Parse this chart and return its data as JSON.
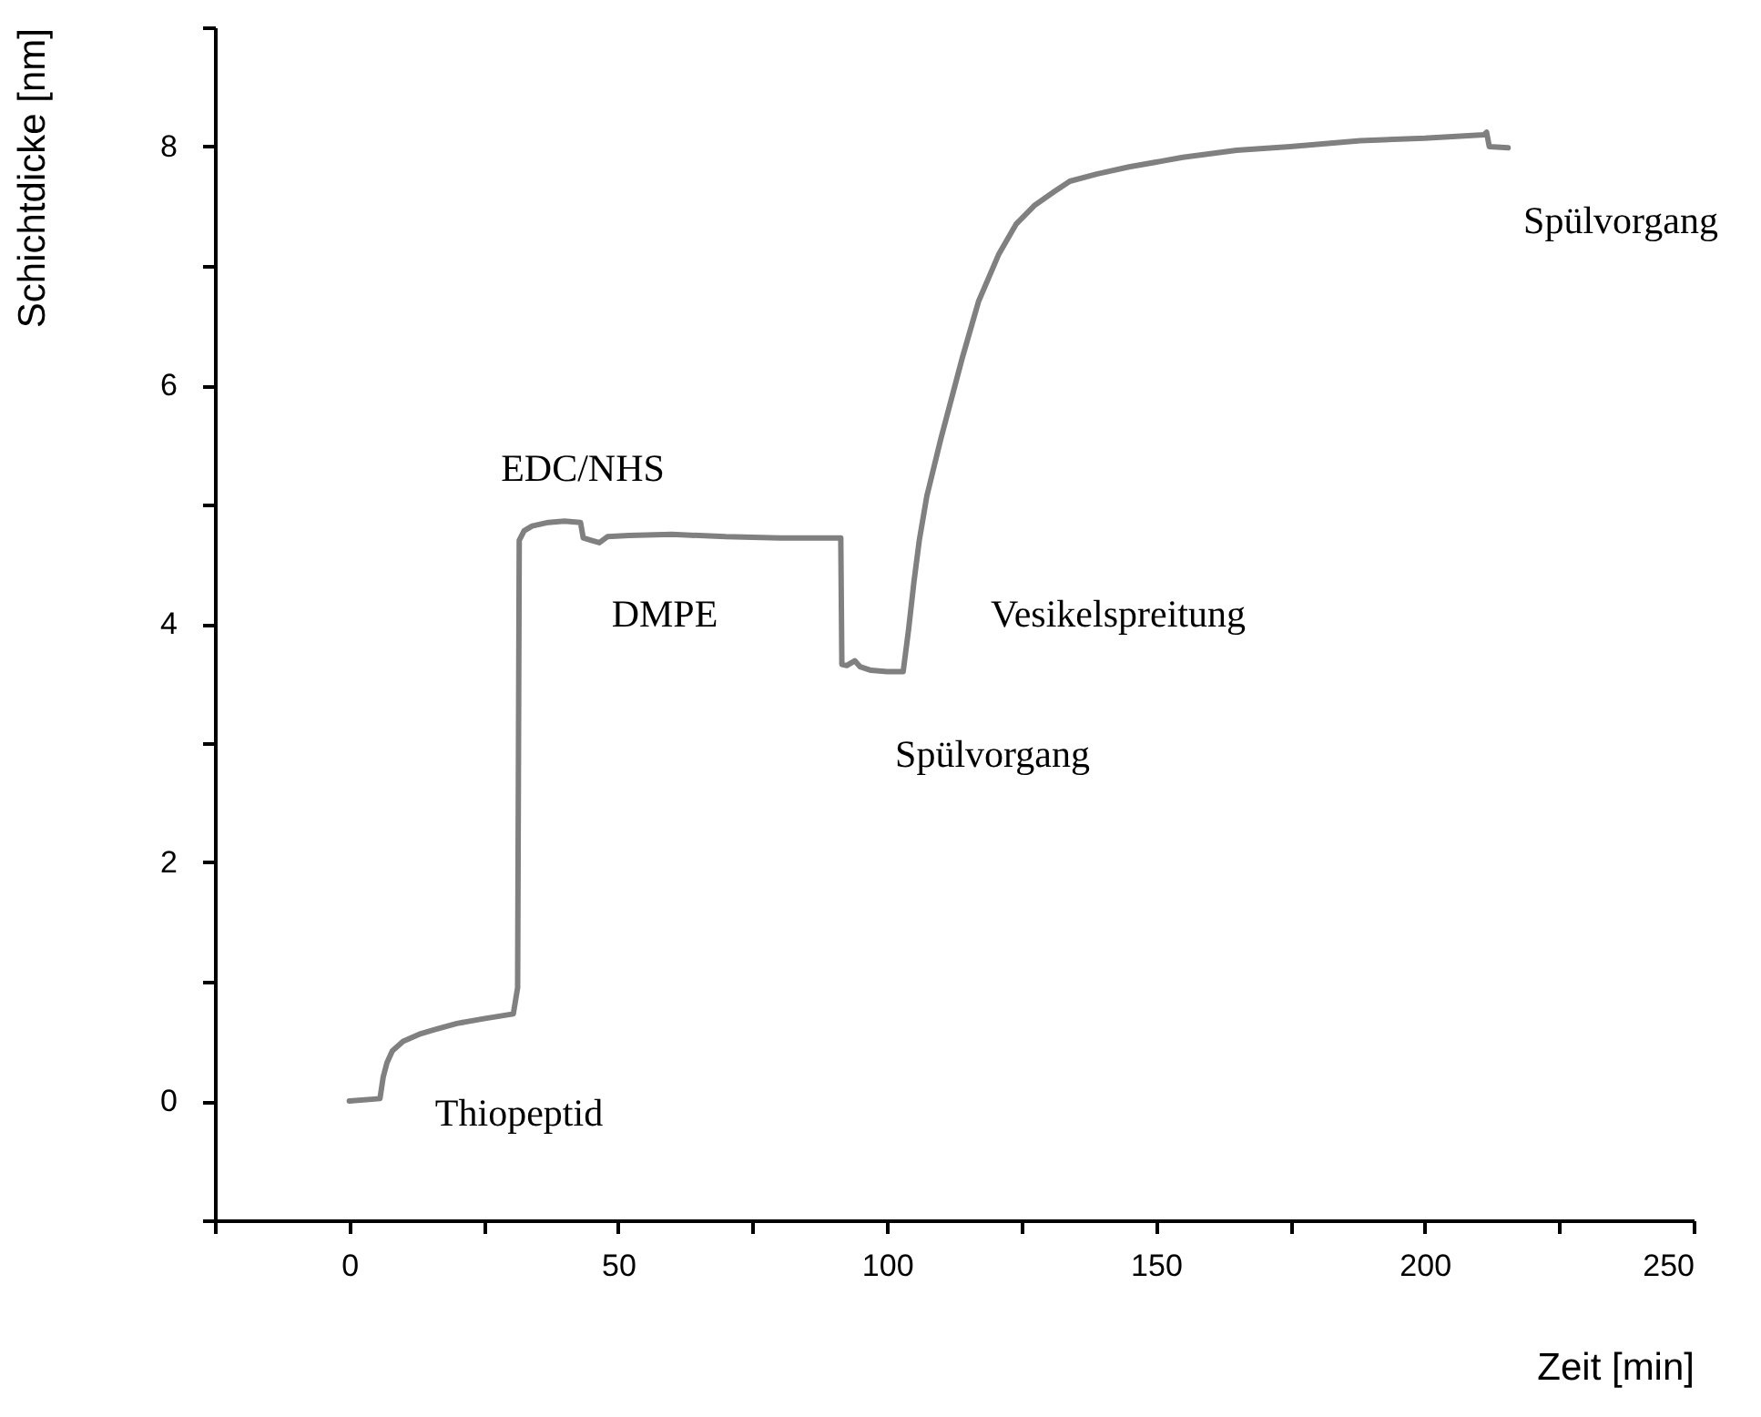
{
  "chart_data": {
    "type": "line",
    "xlabel": "Zeit [min]",
    "ylabel": "Schichtdicke [nm]",
    "xlim": [
      -25,
      250
    ],
    "ylim": [
      -1,
      9
    ],
    "xticks": [
      {
        "value": -25,
        "label": null
      },
      0,
      {
        "value": 25,
        "label": null
      },
      50,
      {
        "value": 75,
        "label": null
      },
      100,
      {
        "value": 125,
        "label": null
      },
      150,
      {
        "value": 175,
        "label": null
      },
      200,
      {
        "value": 225,
        "label": null
      },
      250
    ],
    "yticks": [
      {
        "value": -1,
        "label": null
      },
      0,
      {
        "value": 1,
        "label": null
      },
      2,
      {
        "value": 3,
        "label": null
      },
      4,
      {
        "value": 5,
        "label": null
      },
      6,
      {
        "value": 7,
        "label": null
      },
      8,
      {
        "value": 9,
        "label": null
      }
    ],
    "series": [
      {
        "color": "#808080",
        "x": [
          0,
          5.7,
          6.3,
          7,
          8,
          10,
          13,
          16,
          20,
          25,
          30.5,
          31.3,
          31.6,
          32.5,
          34,
          37,
          40,
          43,
          43.5,
          45,
          46.5,
          48,
          52,
          60,
          70,
          80,
          88,
          91.4,
          91.6,
          92.5,
          94,
          95,
          97,
          100,
          103,
          104,
          105,
          106,
          107.4,
          110,
          114,
          117,
          120.8,
          124,
          127.5,
          131,
          134,
          139,
          145,
          155,
          165,
          175,
          188,
          200,
          211,
          211.5,
          212,
          215.5
        ],
        "values": [
          0,
          0.02,
          0.2,
          0.32,
          0.42,
          0.5,
          0.56,
          0.6,
          0.65,
          0.69,
          0.73,
          0.95,
          4.7,
          4.78,
          4.82,
          4.85,
          4.86,
          4.85,
          4.72,
          4.7,
          4.68,
          4.73,
          4.74,
          4.75,
          4.73,
          4.72,
          4.72,
          4.72,
          3.66,
          3.65,
          3.69,
          3.64,
          3.61,
          3.6,
          3.6,
          3.95,
          4.35,
          4.7,
          5.07,
          5.55,
          6.23,
          6.7,
          7.1,
          7.35,
          7.51,
          7.62,
          7.71,
          7.77,
          7.83,
          7.91,
          7.97,
          8.0,
          8.05,
          8.07,
          8.1,
          8.12,
          8.0,
          7.99
        ]
      }
    ],
    "annotations": [
      "Thiopeptid",
      "EDC/NHS",
      "DMPE",
      "Spülvorgang",
      "Vesikelspreitung",
      "Spülvorgang"
    ]
  }
}
